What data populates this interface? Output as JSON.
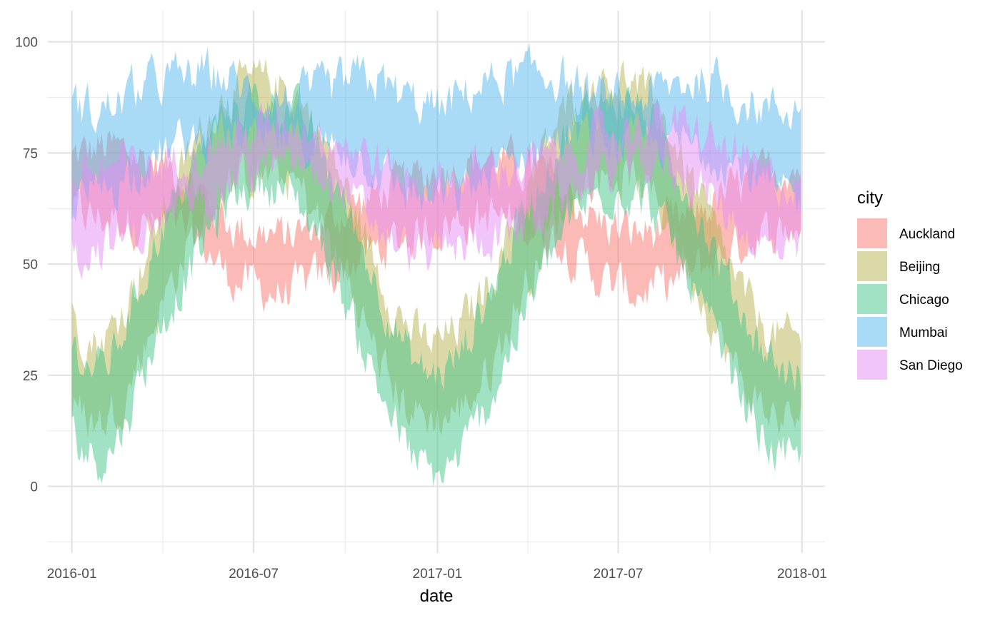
{
  "chart_data": {
    "type": "area",
    "title": "",
    "xlabel": "date",
    "ylabel": "",
    "x_type": "date",
    "xlim": [
      "2015-12-08",
      "2018-01-24"
    ],
    "ylim": [
      -15,
      107
    ],
    "grid": true,
    "x_ticks": [
      {
        "label": "2016-01",
        "date": "2016-01-01"
      },
      {
        "label": "2016-07",
        "date": "2016-07-01"
      },
      {
        "label": "2017-01",
        "date": "2017-01-01"
      },
      {
        "label": "2017-07",
        "date": "2017-07-01"
      },
      {
        "label": "2018-01",
        "date": "2018-01-01"
      }
    ],
    "y_ticks": [
      0,
      25,
      50,
      75,
      100
    ],
    "legend": {
      "title": "city",
      "position": "right"
    },
    "x": [
      "2016-01-01",
      "2016-01-15",
      "2016-01-29",
      "2016-02-12",
      "2016-02-26",
      "2016-03-11",
      "2016-03-25",
      "2016-04-08",
      "2016-04-22",
      "2016-05-06",
      "2016-05-20",
      "2016-06-03",
      "2016-06-17",
      "2016-07-01",
      "2016-07-15",
      "2016-07-29",
      "2016-08-12",
      "2016-08-26",
      "2016-09-09",
      "2016-09-23",
      "2016-10-07",
      "2016-10-21",
      "2016-11-04",
      "2016-11-18",
      "2016-12-02",
      "2016-12-16",
      "2016-12-30",
      "2017-01-13",
      "2017-01-27",
      "2017-02-10",
      "2017-02-24",
      "2017-03-10",
      "2017-03-24",
      "2017-04-07",
      "2017-04-21",
      "2017-05-05",
      "2017-05-19",
      "2017-06-02",
      "2017-06-16",
      "2017-06-30",
      "2017-07-14",
      "2017-07-28",
      "2017-08-11",
      "2017-08-25",
      "2017-09-08",
      "2017-09-22",
      "2017-10-06",
      "2017-10-20",
      "2017-11-03",
      "2017-11-17",
      "2017-12-01",
      "2017-12-15",
      "2017-12-31"
    ],
    "series": [
      {
        "name": "Auckland",
        "color": "#F8766D",
        "low": [
          62,
          61,
          60,
          61,
          60,
          59,
          58,
          58,
          57,
          55,
          52,
          48,
          46,
          45,
          44,
          43,
          44,
          46,
          47,
          48,
          50,
          52,
          53,
          55,
          56,
          57,
          58,
          59,
          60,
          60,
          61,
          60,
          59,
          58,
          57,
          55,
          52,
          49,
          46,
          45,
          44,
          44,
          45,
          46,
          47,
          49,
          51,
          53,
          55,
          56,
          57,
          58,
          58
        ],
        "high": [
          74,
          75,
          76,
          76,
          75,
          74,
          73,
          72,
          70,
          67,
          63,
          60,
          58,
          57,
          57,
          56,
          57,
          58,
          59,
          61,
          63,
          64,
          66,
          67,
          68,
          70,
          71,
          72,
          73,
          73,
          74,
          73,
          72,
          71,
          70,
          67,
          64,
          61,
          59,
          58,
          57,
          57,
          58,
          59,
          60,
          62,
          64,
          66,
          68,
          69,
          71,
          72,
          72
        ]
      },
      {
        "name": "Beijing",
        "color": "#B7B34F",
        "low": [
          18,
          15,
          14,
          17,
          22,
          30,
          38,
          45,
          52,
          58,
          63,
          67,
          69,
          70,
          70,
          69,
          68,
          64,
          58,
          51,
          44,
          36,
          28,
          22,
          18,
          16,
          15,
          16,
          18,
          22,
          27,
          34,
          42,
          49,
          56,
          62,
          66,
          69,
          70,
          70,
          69,
          67,
          63,
          57,
          50,
          43,
          36,
          29,
          23,
          19,
          16,
          15,
          15
        ],
        "high": [
          38,
          34,
          32,
          36,
          42,
          50,
          58,
          65,
          72,
          78,
          84,
          88,
          90,
          91,
          91,
          90,
          88,
          84,
          78,
          71,
          64,
          56,
          48,
          41,
          36,
          33,
          32,
          34,
          37,
          42,
          47,
          55,
          63,
          70,
          77,
          83,
          87,
          90,
          92,
          92,
          91,
          88,
          84,
          78,
          71,
          64,
          57,
          50,
          43,
          38,
          35,
          33,
          33
        ]
      },
      {
        "name": "Chicago",
        "color": "#44C389",
        "low": [
          12,
          8,
          6,
          9,
          16,
          25,
          33,
          40,
          46,
          52,
          58,
          63,
          66,
          68,
          68,
          67,
          65,
          60,
          54,
          46,
          38,
          30,
          22,
          15,
          8,
          4,
          2,
          4,
          8,
          14,
          20,
          28,
          36,
          43,
          50,
          56,
          61,
          64,
          66,
          67,
          66,
          64,
          60,
          54,
          47,
          40,
          33,
          26,
          19,
          13,
          9,
          6,
          4
        ],
        "high": [
          32,
          28,
          26,
          30,
          38,
          46,
          55,
          62,
          68,
          74,
          80,
          84,
          86,
          87,
          87,
          86,
          84,
          80,
          74,
          67,
          60,
          52,
          44,
          37,
          30,
          26,
          25,
          27,
          31,
          38,
          44,
          52,
          60,
          66,
          72,
          78,
          82,
          85,
          87,
          87,
          86,
          84,
          80,
          74,
          67,
          60,
          53,
          46,
          39,
          33,
          29,
          26,
          25
        ]
      },
      {
        "name": "Mumbai",
        "color": "#54B6EE",
        "low": [
          64,
          65,
          66,
          68,
          70,
          72,
          74,
          76,
          77,
          78,
          79,
          79,
          78,
          77,
          77,
          77,
          77,
          77,
          77,
          76,
          75,
          73,
          71,
          68,
          66,
          65,
          64,
          65,
          66,
          68,
          70,
          72,
          74,
          76,
          77,
          78,
          79,
          79,
          78,
          77,
          77,
          77,
          77,
          77,
          77,
          76,
          75,
          73,
          71,
          68,
          66,
          65,
          64
        ],
        "high": [
          86,
          85,
          84,
          86,
          88,
          90,
          91,
          92,
          92,
          93,
          93,
          92,
          90,
          88,
          87,
          87,
          87,
          88,
          89,
          90,
          91,
          92,
          91,
          89,
          87,
          86,
          85,
          86,
          88,
          90,
          91,
          92,
          92,
          93,
          93,
          92,
          90,
          88,
          87,
          87,
          87,
          88,
          89,
          90,
          91,
          92,
          91,
          89,
          87,
          86,
          85,
          85,
          85
        ]
      },
      {
        "name": "San Diego",
        "color": "#E58BF5",
        "low": [
          52,
          53,
          54,
          55,
          56,
          57,
          58,
          60,
          62,
          64,
          66,
          68,
          70,
          71,
          72,
          72,
          72,
          71,
          69,
          67,
          64,
          61,
          58,
          55,
          53,
          52,
          52,
          53,
          54,
          55,
          56,
          57,
          58,
          60,
          62,
          64,
          66,
          68,
          70,
          71,
          72,
          72,
          72,
          71,
          69,
          67,
          64,
          61,
          58,
          55,
          53,
          52,
          52
        ],
        "high": [
          68,
          70,
          71,
          72,
          72,
          72,
          72,
          73,
          74,
          75,
          76,
          78,
          79,
          80,
          81,
          82,
          82,
          81,
          80,
          79,
          77,
          75,
          73,
          71,
          69,
          68,
          68,
          69,
          70,
          71,
          72,
          72,
          72,
          73,
          74,
          75,
          76,
          78,
          79,
          80,
          81,
          82,
          82,
          81,
          80,
          79,
          77,
          75,
          73,
          71,
          69,
          68,
          68
        ]
      }
    ]
  }
}
